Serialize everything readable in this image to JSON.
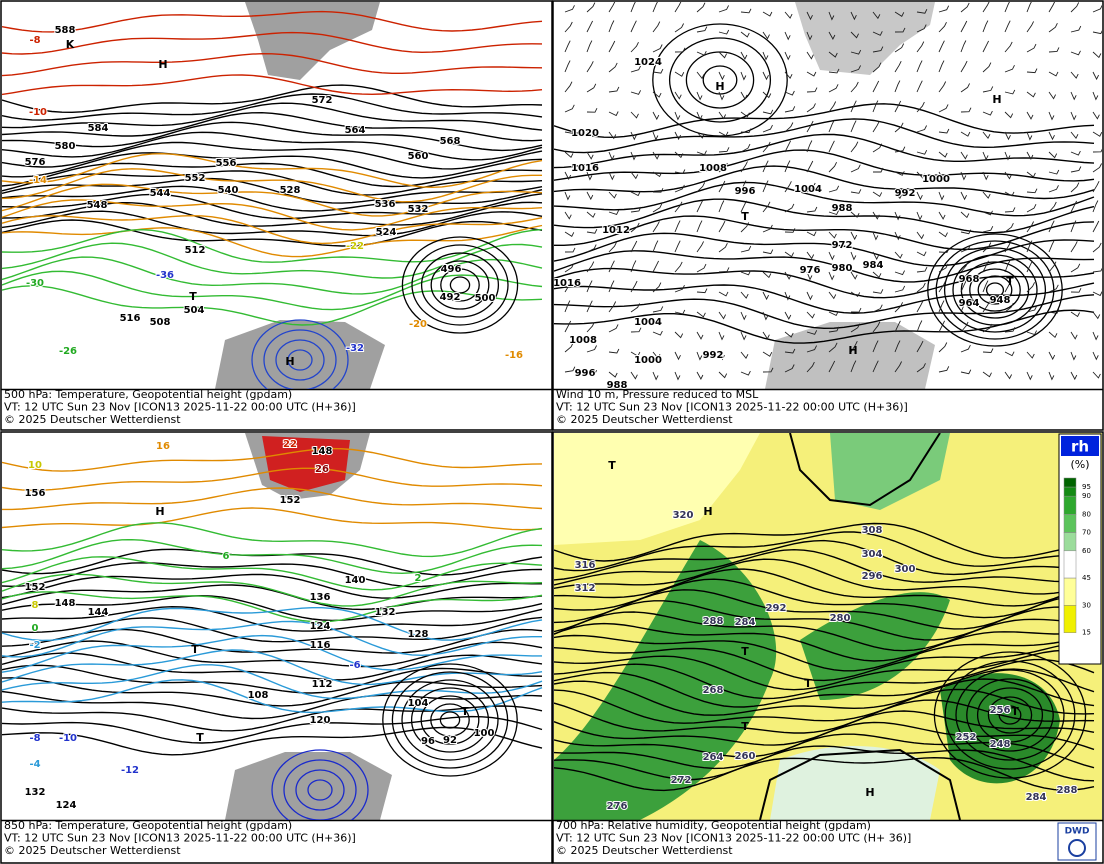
{
  "panels": [
    {
      "caption": [
        "500 hPa: Temperature, Geopotential height (gpdam)",
        "VT: 12 UTC Sun  23 Nov [ICON13 2025-11-22 00:00 UTC  (H+36)]",
        "© 2025 Deutscher Wetterdienst"
      ],
      "labels": [
        588,
        584,
        580,
        576,
        572,
        568,
        564,
        560,
        556,
        552,
        548,
        544,
        540,
        536,
        532,
        528,
        524,
        516,
        512,
        508,
        504,
        500,
        496,
        492,
        -8,
        -10,
        -14,
        -16,
        -20,
        -22,
        -26,
        -30,
        -32,
        -36
      ],
      "letters": [
        "H",
        "K",
        "T",
        "H"
      ]
    },
    {
      "caption": [
        "Wind 10 m, Pressure reduced to MSL",
        "VT: 12 UTC Sun  23 Nov [ICON13 2025-11-22 00:00 UTC  (H+36)]",
        "© 2025 Deutscher Wetterdienst"
      ],
      "labels": [
        1024,
        1020,
        1016,
        1012,
        1008,
        1004,
        1000,
        996,
        992,
        988,
        984,
        980,
        976,
        972,
        968,
        964,
        948,
        1016,
        1008,
        1004,
        1000,
        996,
        992,
        988
      ],
      "letters": [
        "H",
        "H",
        "T",
        "T",
        "H"
      ]
    },
    {
      "caption": [
        "850 hPa:  Temperature, Geopotential height (gpdam)",
        "VT: 12 UTC Sun  23 Nov [ICON13 2025-11-22 00:00 UTC  (H+36)]",
        "© 2025 Deutscher Wetterdienst"
      ],
      "labels": [
        156,
        152,
        148,
        144,
        140,
        136,
        132,
        128,
        124,
        120,
        116,
        112,
        108,
        104,
        100,
        96,
        92,
        132,
        124,
        148,
        152,
        16,
        10,
        8,
        6,
        2,
        0,
        -2,
        -4,
        -6,
        -8,
        -10,
        -12,
        22,
        26
      ],
      "letters": [
        "T",
        "T",
        "H",
        "T"
      ]
    },
    {
      "caption": [
        "700 hPa:  Relative humidity, Geopotential height (gpdam)",
        "VT: 12 UTC Sun  23 Nov [ICON13  2025-11-22 00:00 UTC  (H+ 36)]",
        "© 2025 Deutscher Wetterdienst"
      ],
      "labels": [
        320,
        316,
        312,
        308,
        304,
        300,
        296,
        292,
        288,
        284,
        280,
        276,
        272,
        268,
        264,
        260,
        256,
        252,
        248,
        284,
        288
      ],
      "letters": [
        "T",
        "H",
        "T",
        "T",
        "T",
        "T",
        "H"
      ],
      "legend": {
        "title": "rh",
        "unit": "(%)",
        "levels": [
          95,
          90,
          80,
          70,
          60,
          45,
          30,
          15
        ],
        "colors": [
          "#006400",
          "#138a13",
          "#2ea82e",
          "#5cc45c",
          "#9bdc9b",
          "#ffffff",
          "#ffff99",
          "#f0f000"
        ]
      },
      "logo": "DWD"
    }
  ]
}
